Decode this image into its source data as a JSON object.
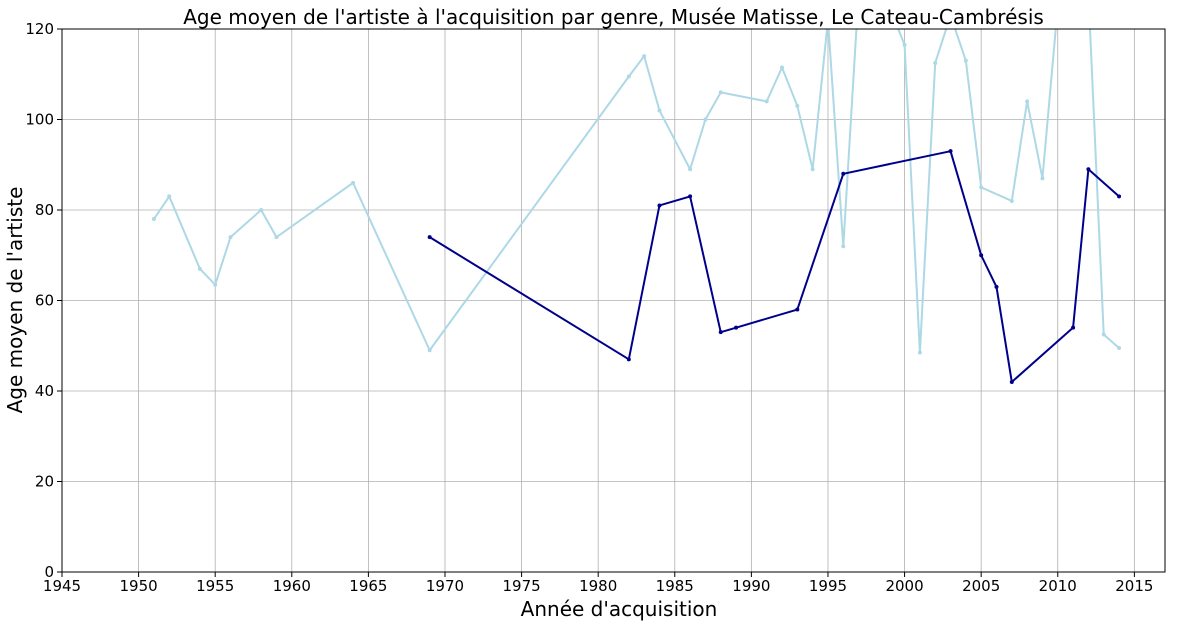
{
  "chart_data": {
    "type": "line",
    "title": "Age moyen de l'artiste à l'acquisition par genre, Musée Matisse, Le Cateau-Cambrésis",
    "xlabel": "Année d'acquisition",
    "ylabel": "Age moyen de l'artiste",
    "xlim": [
      1945,
      2017
    ],
    "ylim": [
      0,
      120
    ],
    "xticks": [
      "1945",
      "1950",
      "1955",
      "1960",
      "1965",
      "1970",
      "1975",
      "1980",
      "1985",
      "1990",
      "1995",
      "2000",
      "2005",
      "2010",
      "2015"
    ],
    "yticks": [
      "0",
      "20",
      "40",
      "60",
      "80",
      "100",
      "120"
    ],
    "grid": true,
    "series": [
      {
        "color": "#add8e6",
        "points": [
          [
            1951,
            78
          ],
          [
            1952,
            83
          ],
          [
            1954,
            67
          ],
          [
            1955,
            63.5
          ],
          [
            1956,
            74
          ],
          [
            1958,
            80
          ],
          [
            1959,
            74
          ],
          [
            1964,
            86
          ],
          [
            1969,
            49
          ],
          [
            1982,
            109.5
          ],
          [
            1983,
            114
          ],
          [
            1984,
            102
          ],
          [
            1986,
            89
          ],
          [
            1987,
            100
          ],
          [
            1988,
            106
          ],
          [
            1991,
            104
          ],
          [
            1992,
            111.5
          ],
          [
            1993,
            103
          ],
          [
            1994,
            89
          ],
          [
            1995,
            122
          ],
          [
            1996,
            72
          ],
          [
            1997,
            128
          ],
          [
            1999,
            125
          ],
          [
            2000,
            116.5
          ],
          [
            2001,
            48.5
          ],
          [
            2002,
            112.5
          ],
          [
            2003,
            123
          ],
          [
            2004,
            113
          ],
          [
            2005,
            85
          ],
          [
            2007,
            82
          ],
          [
            2008,
            104
          ],
          [
            2009,
            87
          ],
          [
            2010,
            125
          ],
          [
            2012,
            128
          ],
          [
            2013,
            52.5
          ],
          [
            2014,
            49.5
          ]
        ]
      },
      {
        "color": "#00008b",
        "points": [
          [
            1969,
            74
          ],
          [
            1982,
            47
          ],
          [
            1984,
            81
          ],
          [
            1986,
            83
          ],
          [
            1988,
            53
          ],
          [
            1989,
            54
          ],
          [
            1993,
            58
          ],
          [
            1996,
            88
          ],
          [
            2003,
            93
          ],
          [
            2005,
            70
          ],
          [
            2006,
            63
          ],
          [
            2007,
            42
          ],
          [
            2011,
            54
          ],
          [
            2012,
            89
          ],
          [
            2014,
            83
          ]
        ]
      }
    ]
  }
}
